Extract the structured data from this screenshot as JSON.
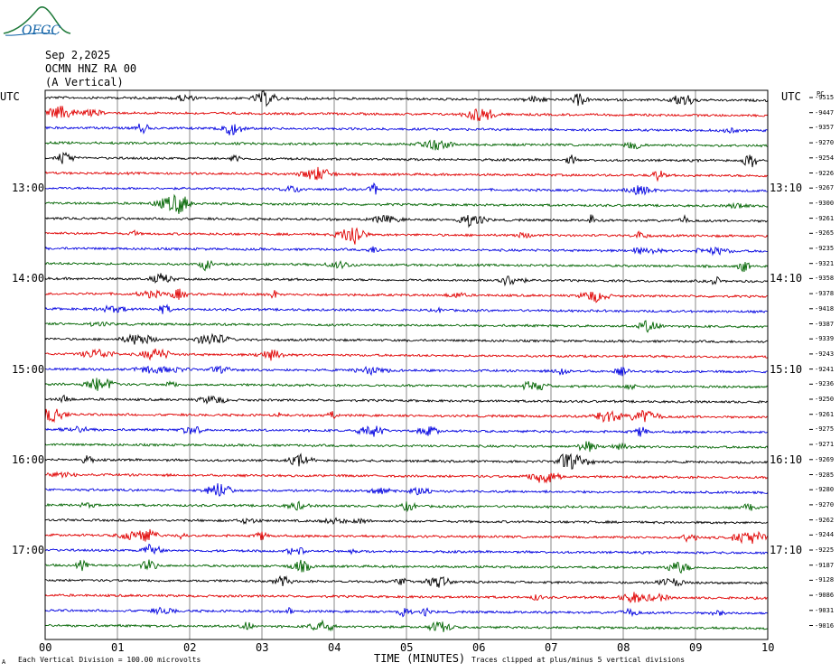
{
  "logo": {
    "text": "OFGC",
    "color": "#0b5fa5",
    "mountain_color": "#1f7a3a"
  },
  "header": {
    "date": "Sep 2,2025",
    "station": "OCMN HNZ RA 00",
    "component": "(A Vertical)"
  },
  "left_timezone": "UTC",
  "right_timezone": "UTC",
  "right_top_label": "PC",
  "footer": {
    "scale_mark": "A",
    "scale_note": "Each Vertical Division =  100.00 microvolts",
    "xlabel": "TIME (MINUTES)",
    "clip_note": "Traces clipped at plus/minus 5 vertical divisions"
  },
  "chart_data": {
    "type": "line",
    "title": "",
    "xlabel": "TIME (MINUTES)",
    "xlim": [
      0,
      10
    ],
    "x_ticks": [
      "00",
      "01",
      "02",
      "03",
      "04",
      "05",
      "06",
      "07",
      "08",
      "09",
      "10"
    ],
    "left_time_labels": [
      {
        "row": 6,
        "label": "13:00"
      },
      {
        "row": 12,
        "label": "14:00"
      },
      {
        "row": 18,
        "label": "15:00"
      },
      {
        "row": 24,
        "label": "16:00"
      },
      {
        "row": 30,
        "label": "17:00"
      }
    ],
    "right_time_labels": [
      {
        "row": 6,
        "label": "13:10"
      },
      {
        "row": 12,
        "label": "14:10"
      },
      {
        "row": 18,
        "label": "15:10"
      },
      {
        "row": 24,
        "label": "16:10"
      },
      {
        "row": 30,
        "label": "17:10"
      }
    ],
    "trace_colors": [
      "#000000",
      "#e00000",
      "#0000e0",
      "#006400"
    ],
    "trace_offsets": [
      "-9515",
      "-9447",
      "-9357",
      "-9270",
      "-9254",
      "-9226",
      "-9267",
      "-9300",
      "-9261",
      "-9265",
      "-9235",
      "-9321",
      "-9358",
      "-9378",
      "-9418",
      "-9387",
      "-9339",
      "-9243",
      "-9241",
      "-9236",
      "-9250",
      "-9261",
      "-9275",
      "-9271",
      "-9269",
      "-9285",
      "-9280",
      "-9270",
      "-9262",
      "-9244",
      "-9225",
      "-9187",
      "-9128",
      "-9086",
      "-9031",
      "-9016"
    ],
    "grid": true
  }
}
